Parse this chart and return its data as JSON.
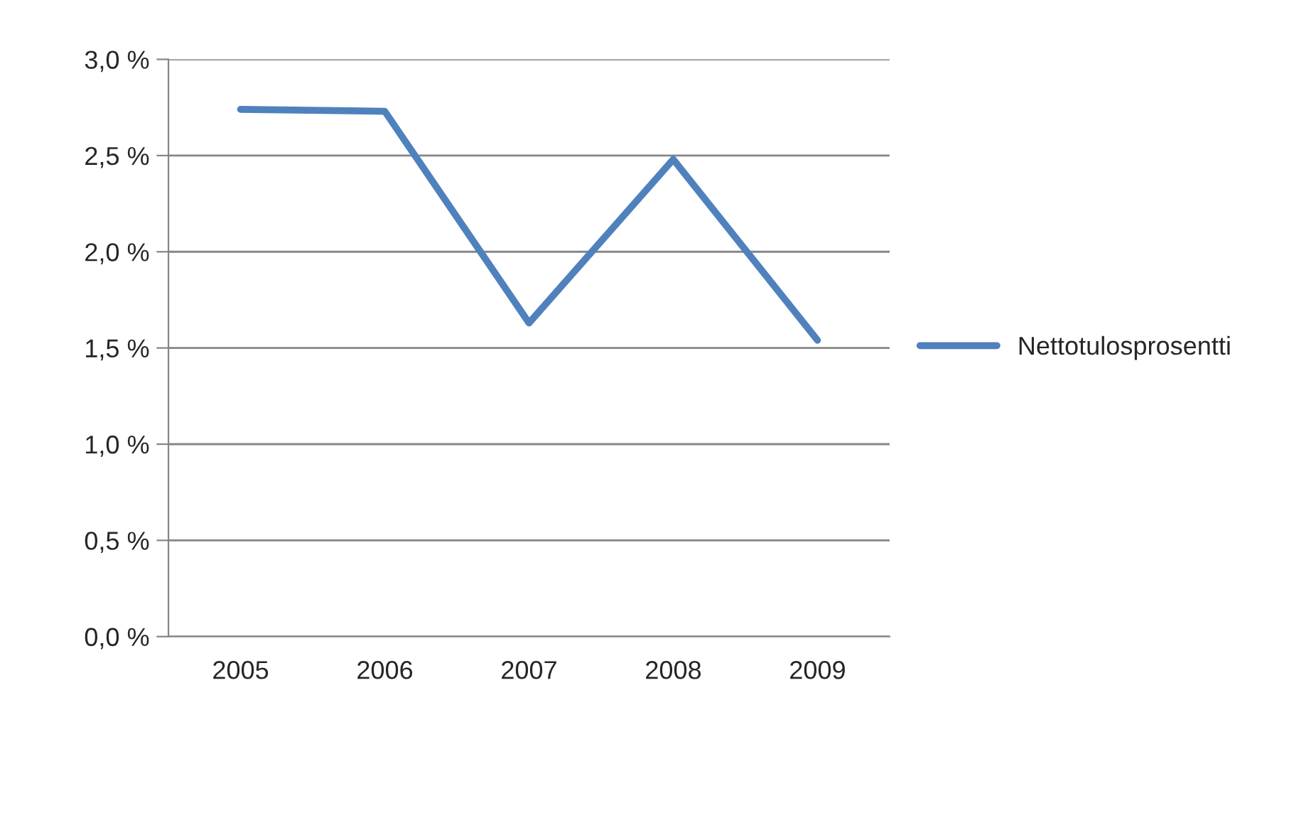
{
  "chart_data": {
    "type": "line",
    "categories": [
      "2005",
      "2006",
      "2007",
      "2008",
      "2009"
    ],
    "series": [
      {
        "name": "Nettotulosprosentti",
        "color": "#4f81bd",
        "values": [
          2.74,
          2.73,
          1.63,
          2.48,
          1.54
        ]
      }
    ],
    "ylim": [
      0,
      3.0
    ],
    "yticks": [
      {
        "value": 0,
        "label": "0,0 %"
      },
      {
        "value": 0.5,
        "label": "0,5 %"
      },
      {
        "value": 1.0,
        "label": "1,0 %"
      },
      {
        "value": 1.5,
        "label": "1,5 %"
      },
      {
        "value": 2.0,
        "label": "2,0 %"
      },
      {
        "value": 2.5,
        "label": "2,5 %"
      },
      {
        "value": 3.0,
        "label": "3,0 %"
      }
    ],
    "grid": "y",
    "legend": "right",
    "marker": "none",
    "line_style": "solid"
  }
}
